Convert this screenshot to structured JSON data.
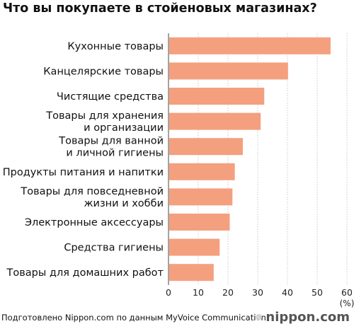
{
  "title": "Что вы покупаете в стойеновых магазинах?",
  "footer": "Подготовлено Nippon.com по данным MyVoice Communication",
  "brand": "nippon.com",
  "chart_data": {
    "type": "bar",
    "orientation": "horizontal",
    "categories": [
      [
        "Кухонные товары"
      ],
      [
        "Канцелярские товары"
      ],
      [
        "Чистящие средства"
      ],
      [
        "Товары для хранения",
        "и организации"
      ],
      [
        "Товары для ванной",
        "и личной гигиены"
      ],
      [
        "Продукты питания и напитки"
      ],
      [
        "Товары для повседневной",
        "жизни и хобби"
      ],
      [
        "Электронные аксессуары"
      ],
      [
        "Средства гигиены"
      ],
      [
        "Товары для домашних работ"
      ]
    ],
    "values": [
      54.5,
      40.2,
      32.2,
      31.0,
      25.0,
      22.3,
      21.5,
      20.6,
      17.2,
      15.2
    ],
    "xlim": [
      0,
      60
    ],
    "xticks": [
      "0",
      "10",
      "20",
      "30",
      "40",
      "50",
      "60"
    ],
    "xunit": "(%)",
    "bar_color": "#f4a07e",
    "grid": true
  }
}
